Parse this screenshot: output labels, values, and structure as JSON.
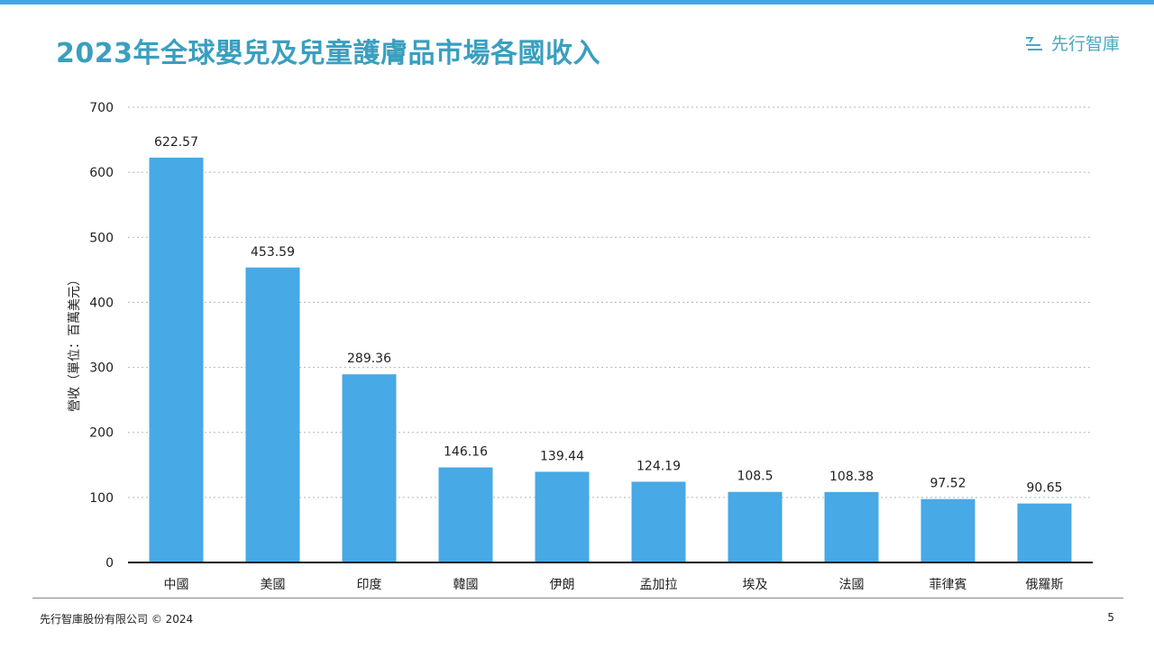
{
  "page": {
    "title": "2023年全球嬰兒及兒童護膚品市場各國收入",
    "brand": "先行智庫",
    "footer_left": "先行智庫股份有限公司 © 2024",
    "page_number": "5",
    "accent_color": "#44a7e5",
    "title_color": "#3a9fbf"
  },
  "chart_data": {
    "type": "bar",
    "title": "2023年全球嬰兒及兒童護膚品市場各國收入",
    "xlabel": "",
    "ylabel": "營收（單位：百萬美元）",
    "categories": [
      "中國",
      "美國",
      "印度",
      "韓國",
      "伊朗",
      "孟加拉",
      "埃及",
      "法國",
      "菲律賓",
      "俄羅斯"
    ],
    "values": [
      622.57,
      453.59,
      289.36,
      146.16,
      139.44,
      124.19,
      108.5,
      108.38,
      97.52,
      90.65
    ],
    "value_labels": [
      "622.57",
      "453.59",
      "289.36",
      "146.16",
      "139.44",
      "124.19",
      "108.5",
      "108.38",
      "97.52",
      "90.65"
    ],
    "ylim": [
      0,
      700
    ],
    "yticks": [
      0,
      100,
      200,
      300,
      400,
      500,
      600,
      700
    ],
    "grid": true,
    "bar_color": "#47a9e6"
  }
}
